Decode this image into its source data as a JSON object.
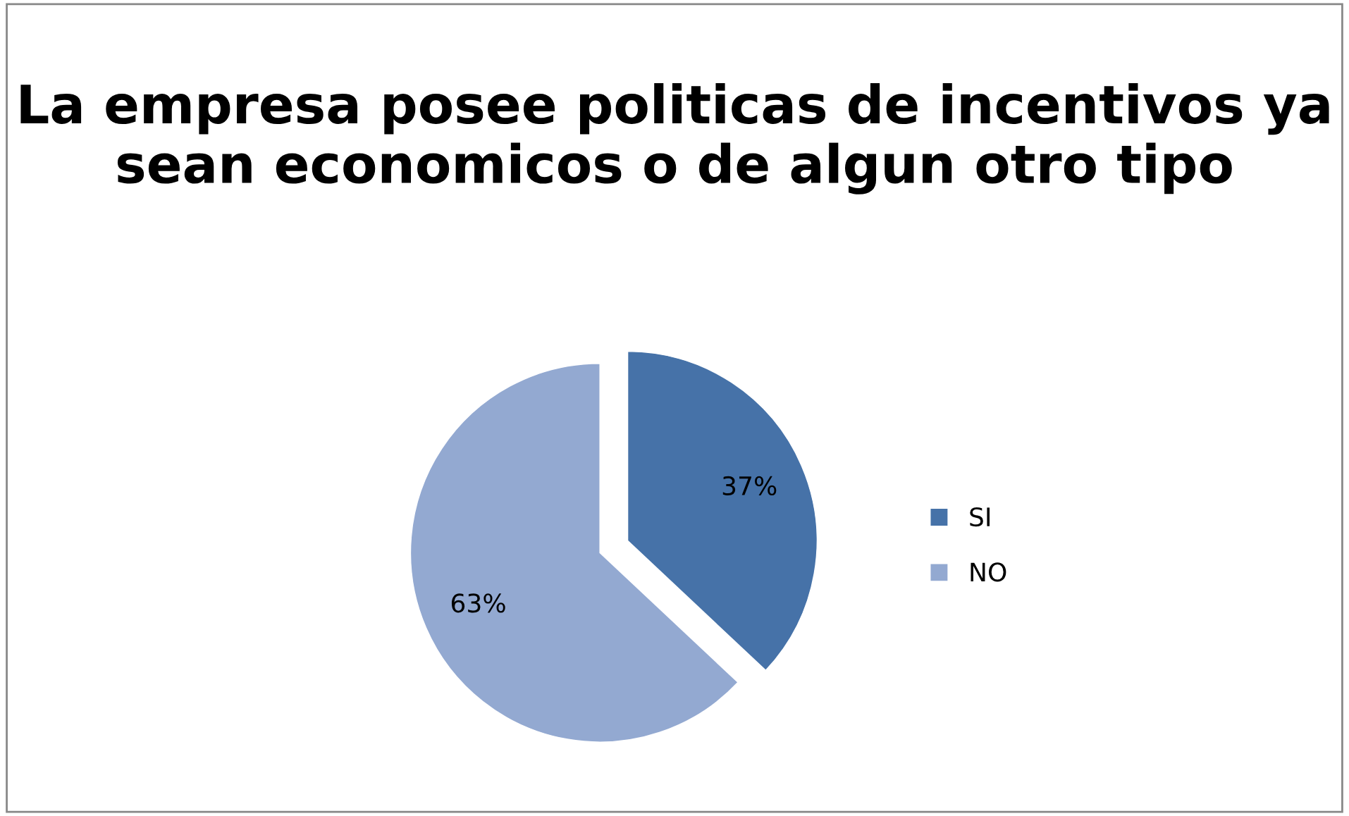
{
  "chart_data": {
    "type": "pie",
    "title": "La empresa posee politicas de incentivos ya sean economicos o de algun otro tipo",
    "categories": [
      "SI",
      "NO"
    ],
    "values": [
      37,
      63
    ],
    "colors": [
      "#4672a8",
      "#93a9d1"
    ],
    "value_labels": [
      "37%",
      "63%"
    ],
    "legend": "right"
  }
}
